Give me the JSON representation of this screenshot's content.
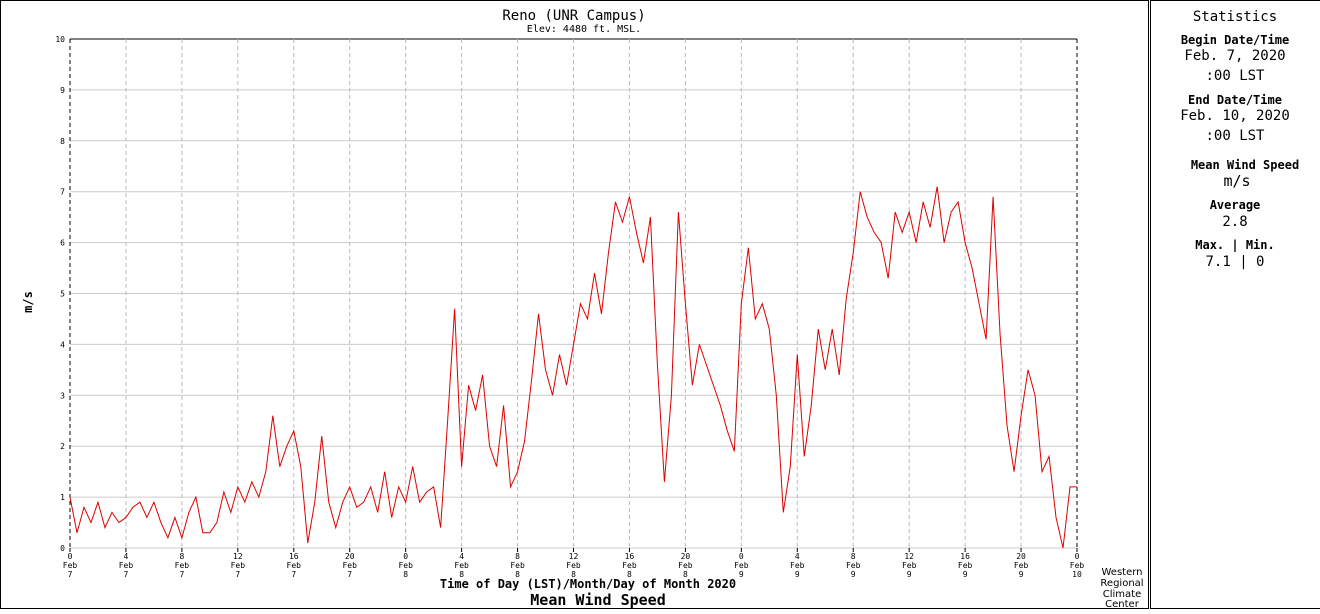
{
  "chart_data": {
    "type": "line",
    "title": "Reno (UNR Campus)",
    "subtitle": "Elev: 4480 ft. MSL.",
    "y_label": "m/s",
    "x_label": "Time of Day (LST)/Month/Day of Month 2020",
    "caption": "Mean Wind Speed",
    "credit": [
      "Western",
      "Regional",
      "Climate",
      "Center"
    ],
    "color": "#dd0000",
    "grid": true,
    "ylim": [
      0,
      10
    ],
    "yticks": [
      0,
      1,
      2,
      3,
      4,
      5,
      6,
      7,
      8,
      9,
      10
    ],
    "xlim": [
      0,
      72
    ],
    "xticks": [
      {
        "value": 0,
        "label": "0",
        "month": "Feb",
        "day": "7"
      },
      {
        "value": 4,
        "label": "4",
        "month": "Feb",
        "day": "7"
      },
      {
        "value": 8,
        "label": "8",
        "month": "Feb",
        "day": "7"
      },
      {
        "value": 12,
        "label": "12",
        "month": "Feb",
        "day": "7"
      },
      {
        "value": 16,
        "label": "16",
        "month": "Feb",
        "day": "7"
      },
      {
        "value": 20,
        "label": "20",
        "month": "Feb",
        "day": "7"
      },
      {
        "value": 24,
        "label": "0",
        "month": "Feb",
        "day": "8"
      },
      {
        "value": 28,
        "label": "4",
        "month": "Feb",
        "day": "8"
      },
      {
        "value": 32,
        "label": "8",
        "month": "Feb",
        "day": "8"
      },
      {
        "value": 36,
        "label": "12",
        "month": "Feb",
        "day": "8"
      },
      {
        "value": 40,
        "label": "16",
        "month": "Feb",
        "day": "8"
      },
      {
        "value": 44,
        "label": "20",
        "month": "Feb",
        "day": "8"
      },
      {
        "value": 48,
        "label": "0",
        "month": "Feb",
        "day": "9"
      },
      {
        "value": 52,
        "label": "4",
        "month": "Feb",
        "day": "9"
      },
      {
        "value": 56,
        "label": "8",
        "month": "Feb",
        "day": "9"
      },
      {
        "value": 60,
        "label": "12",
        "month": "Feb",
        "day": "9"
      },
      {
        "value": 64,
        "label": "16",
        "month": "Feb",
        "day": "9"
      },
      {
        "value": 68,
        "label": "20",
        "month": "Feb",
        "day": "9"
      },
      {
        "value": 72,
        "label": "0",
        "month": "Feb",
        "day": "10"
      }
    ],
    "x": [
      0,
      0.5,
      1,
      1.5,
      2,
      2.5,
      3,
      3.5,
      4,
      4.5,
      5,
      5.5,
      6,
      6.5,
      7,
      7.5,
      8,
      8.5,
      9,
      9.5,
      10,
      10.5,
      11,
      11.5,
      12,
      12.5,
      13,
      13.5,
      14,
      14.5,
      15,
      15.5,
      16,
      16.5,
      17,
      17.5,
      18,
      18.5,
      19,
      19.5,
      20,
      20.5,
      21,
      21.5,
      22,
      22.5,
      23,
      23.5,
      24,
      24.5,
      25,
      25.5,
      26,
      26.5,
      27,
      27.5,
      28,
      28.5,
      29,
      29.5,
      30,
      30.5,
      31,
      31.5,
      32,
      32.5,
      33,
      33.5,
      34,
      34.5,
      35,
      35.5,
      36,
      36.5,
      37,
      37.5,
      38,
      38.5,
      39,
      39.5,
      40,
      40.5,
      41,
      41.5,
      42,
      42.5,
      43,
      43.5,
      44,
      44.5,
      45,
      45.5,
      46,
      46.5,
      47,
      47.5,
      48,
      48.5,
      49,
      49.5,
      50,
      50.5,
      51,
      51.5,
      52,
      52.5,
      53,
      53.5,
      54,
      54.5,
      55,
      55.5,
      56,
      56.5,
      57,
      57.5,
      58,
      58.5,
      59,
      59.5,
      60,
      60.5,
      61,
      61.5,
      62,
      62.5,
      63,
      63.5,
      64,
      64.5,
      65,
      65.5,
      66,
      66.5,
      67,
      67.5,
      68,
      68.5,
      69,
      69.5,
      70,
      70.5,
      71,
      71.5,
      72
    ],
    "values": [
      1.0,
      0.3,
      0.8,
      0.5,
      0.9,
      0.4,
      0.7,
      0.5,
      0.6,
      0.8,
      0.9,
      0.6,
      0.9,
      0.5,
      0.2,
      0.6,
      0.2,
      0.7,
      1.0,
      0.3,
      0.3,
      0.5,
      1.1,
      0.7,
      1.2,
      0.9,
      1.3,
      1.0,
      1.5,
      2.6,
      1.6,
      2.0,
      2.3,
      1.6,
      0.1,
      0.9,
      2.2,
      0.9,
      0.4,
      0.9,
      1.2,
      0.8,
      0.9,
      1.2,
      0.7,
      1.5,
      0.6,
      1.2,
      0.9,
      1.6,
      0.9,
      1.1,
      1.2,
      0.4,
      2.5,
      4.7,
      1.6,
      3.2,
      2.7,
      3.4,
      2.0,
      1.6,
      2.8,
      1.2,
      1.5,
      2.1,
      3.3,
      4.6,
      3.5,
      3.0,
      3.8,
      3.2,
      4.0,
      4.8,
      4.5,
      5.4,
      4.6,
      5.8,
      6.8,
      6.4,
      6.9,
      6.2,
      5.6,
      6.5,
      3.6,
      1.3,
      3.0,
      6.6,
      4.8,
      3.2,
      4.0,
      3.6,
      3.2,
      2.8,
      2.3,
      1.9,
      4.8,
      5.9,
      4.5,
      4.8,
      4.3,
      3.0,
      0.7,
      1.6,
      3.8,
      1.8,
      2.8,
      4.3,
      3.5,
      4.3,
      3.4,
      4.9,
      5.8,
      7.0,
      6.5,
      6.2,
      6.0,
      5.3,
      6.6,
      6.2,
      6.6,
      6.0,
      6.8,
      6.3,
      7.1,
      6.0,
      6.6,
      6.8,
      6.0,
      5.5,
      4.8,
      4.1,
      6.9,
      4.2,
      2.4,
      1.5,
      2.6,
      3.5,
      3.0,
      1.5,
      1.8,
      0.6,
      0.0,
      1.2,
      1.2
    ]
  },
  "stats": {
    "title": "Statistics",
    "begin_label": "Begin Date/Time",
    "begin_date": "Feb. 7, 2020",
    "begin_time": ":00 LST",
    "end_label": "End Date/Time",
    "end_date": "Feb. 10, 2020",
    "end_time": ":00 LST",
    "variable": "Mean Wind Speed",
    "unit": "m/s",
    "average_label": "Average",
    "average": "2.8",
    "maxmin_label": "Max. | Min.",
    "maxmin": "7.1 | 0"
  }
}
